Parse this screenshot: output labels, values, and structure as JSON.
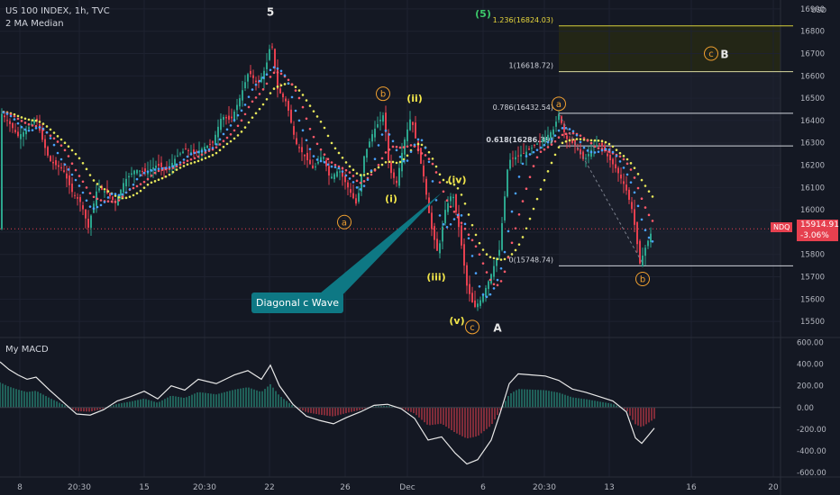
{
  "legend": {
    "symbol": "US 100 INDEX, 1h, TVC",
    "indicator": "2 MA Median"
  },
  "macd_title": "My MACD",
  "currency": "USD",
  "price_badge": {
    "symbol": "NDQ",
    "price": "15914.91",
    "change": "-3.06%"
  },
  "callout": "Diagonal c Wave",
  "colors": {
    "background": "#141823",
    "up": "#2ca58d",
    "down": "#e6404f",
    "fib": "#e7d63c",
    "label": "#f0a030"
  },
  "chart_data": [
    {
      "type": "line",
      "title": "",
      "x_ticks": [
        "8",
        "20:30",
        "15",
        "20:30",
        "22",
        "26",
        "Dec",
        "6",
        "20:30",
        "13",
        "16",
        "20"
      ],
      "y_ticks": [
        15500,
        15600,
        15700,
        15800,
        15900,
        16000,
        16100,
        16200,
        16300,
        16400,
        16500,
        16600,
        16700,
        16800,
        16900
      ],
      "ylim": [
        15440,
        16940
      ],
      "current_price": 15914.91,
      "price_path": [
        {
          "x": 0,
          "y": 16440
        },
        {
          "x": 10,
          "y": 16390
        },
        {
          "x": 20,
          "y": 16330
        },
        {
          "x": 30,
          "y": 16360
        },
        {
          "x": 40,
          "y": 16410
        },
        {
          "x": 48,
          "y": 16300
        },
        {
          "x": 55,
          "y": 16220
        },
        {
          "x": 62,
          "y": 16200
        },
        {
          "x": 70,
          "y": 16180
        },
        {
          "x": 80,
          "y": 16080
        },
        {
          "x": 90,
          "y": 16030
        },
        {
          "x": 98,
          "y": 15920
        },
        {
          "x": 108,
          "y": 16100
        },
        {
          "x": 118,
          "y": 16080
        },
        {
          "x": 128,
          "y": 16030
        },
        {
          "x": 138,
          "y": 16130
        },
        {
          "x": 150,
          "y": 16180
        },
        {
          "x": 162,
          "y": 16170
        },
        {
          "x": 174,
          "y": 16200
        },
        {
          "x": 186,
          "y": 16180
        },
        {
          "x": 196,
          "y": 16240
        },
        {
          "x": 206,
          "y": 16270
        },
        {
          "x": 216,
          "y": 16250
        },
        {
          "x": 226,
          "y": 16280
        },
        {
          "x": 236,
          "y": 16300
        },
        {
          "x": 246,
          "y": 16420
        },
        {
          "x": 256,
          "y": 16400
        },
        {
          "x": 266,
          "y": 16500
        },
        {
          "x": 276,
          "y": 16620
        },
        {
          "x": 286,
          "y": 16560
        },
        {
          "x": 295,
          "y": 16640
        },
        {
          "x": 301,
          "y": 16760
        },
        {
          "x": 308,
          "y": 16540
        },
        {
          "x": 318,
          "y": 16480
        },
        {
          "x": 328,
          "y": 16300
        },
        {
          "x": 338,
          "y": 16240
        },
        {
          "x": 348,
          "y": 16180
        },
        {
          "x": 358,
          "y": 16250
        },
        {
          "x": 366,
          "y": 16140
        },
        {
          "x": 376,
          "y": 16180
        },
        {
          "x": 386,
          "y": 16100
        },
        {
          "x": 396,
          "y": 16020
        },
        {
          "x": 404,
          "y": 16240
        },
        {
          "x": 414,
          "y": 16350
        },
        {
          "x": 426,
          "y": 16430
        },
        {
          "x": 432,
          "y": 16180
        },
        {
          "x": 440,
          "y": 16120
        },
        {
          "x": 448,
          "y": 16300
        },
        {
          "x": 456,
          "y": 16420
        },
        {
          "x": 462,
          "y": 16300
        },
        {
          "x": 470,
          "y": 16150
        },
        {
          "x": 478,
          "y": 15930
        },
        {
          "x": 486,
          "y": 15800
        },
        {
          "x": 494,
          "y": 16000
        },
        {
          "x": 502,
          "y": 16080
        },
        {
          "x": 510,
          "y": 15900
        },
        {
          "x": 518,
          "y": 15660
        },
        {
          "x": 526,
          "y": 15560
        },
        {
          "x": 534,
          "y": 15600
        },
        {
          "x": 544,
          "y": 15700
        },
        {
          "x": 554,
          "y": 15820
        },
        {
          "x": 564,
          "y": 16220
        },
        {
          "x": 574,
          "y": 16240
        },
        {
          "x": 584,
          "y": 16260
        },
        {
          "x": 594,
          "y": 16290
        },
        {
          "x": 604,
          "y": 16320
        },
        {
          "x": 614,
          "y": 16360
        },
        {
          "x": 620,
          "y": 16430
        },
        {
          "x": 628,
          "y": 16320
        },
        {
          "x": 638,
          "y": 16290
        },
        {
          "x": 648,
          "y": 16220
        },
        {
          "x": 658,
          "y": 16280
        },
        {
          "x": 666,
          "y": 16300
        },
        {
          "x": 674,
          "y": 16240
        },
        {
          "x": 684,
          "y": 16180
        },
        {
          "x": 694,
          "y": 16100
        },
        {
          "x": 702,
          "y": 15990
        },
        {
          "x": 710,
          "y": 15760
        },
        {
          "x": 716,
          "y": 15830
        },
        {
          "x": 724,
          "y": 15914
        }
      ],
      "fib_levels": [
        {
          "label": "1.236(16824.03)",
          "value": 16824.03
        },
        {
          "label": "1(16618.72)",
          "value": 16618.72
        },
        {
          "label": "0.786(16432.54)",
          "value": 16432.54
        },
        {
          "label": "0.618(16286.39)",
          "value": 16286.39
        },
        {
          "label": "0(15748.74)",
          "value": 15748.74
        }
      ],
      "wave_labels": [
        {
          "text": "5",
          "style": "plain",
          "x": 300,
          "y": 16890
        },
        {
          "text": "(5)",
          "style": "green",
          "x": 536,
          "y": 16880
        },
        {
          "text": "b",
          "style": "circle",
          "x": 425,
          "y": 16520
        },
        {
          "text": "(ii)",
          "style": "yellow",
          "x": 460,
          "y": 16500
        },
        {
          "text": "a",
          "style": "circle",
          "x": 620,
          "y": 16475
        },
        {
          "text": "c",
          "style": "circle",
          "x": 789,
          "y": 16700
        },
        {
          "text": "B",
          "style": "plain",
          "x": 804,
          "y": 16700
        },
        {
          "text": "(i)",
          "style": "yellow",
          "x": 434,
          "y": 16050
        },
        {
          "text": "a",
          "style": "circle",
          "x": 382,
          "y": 15945
        },
        {
          "text": "(iv)",
          "style": "yellow",
          "x": 507,
          "y": 16135
        },
        {
          "text": "(iii)",
          "style": "yellow",
          "x": 484,
          "y": 15700
        },
        {
          "text": "(v)",
          "style": "yellow",
          "x": 507,
          "y": 15505
        },
        {
          "text": "c",
          "style": "circle",
          "x": 524,
          "y": 15475
        },
        {
          "text": "A",
          "style": "plain",
          "x": 552,
          "y": 15475
        },
        {
          "text": "b",
          "style": "circle",
          "x": 713,
          "y": 15690
        }
      ]
    },
    {
      "type": "bar",
      "title": "My MACD",
      "y_ticks": [
        -600,
        -400,
        -200,
        0,
        200,
        400,
        600
      ],
      "ylim": [
        -640,
        620
      ],
      "macd_line": [
        {
          "x": 0,
          "y": 420
        },
        {
          "x": 10,
          "y": 350
        },
        {
          "x": 20,
          "y": 300
        },
        {
          "x": 30,
          "y": 260
        },
        {
          "x": 40,
          "y": 280
        },
        {
          "x": 55,
          "y": 160
        },
        {
          "x": 70,
          "y": 50
        },
        {
          "x": 85,
          "y": -60
        },
        {
          "x": 100,
          "y": -70
        },
        {
          "x": 115,
          "y": -20
        },
        {
          "x": 130,
          "y": 60
        },
        {
          "x": 145,
          "y": 100
        },
        {
          "x": 160,
          "y": 150
        },
        {
          "x": 175,
          "y": 80
        },
        {
          "x": 190,
          "y": 200
        },
        {
          "x": 205,
          "y": 160
        },
        {
          "x": 220,
          "y": 260
        },
        {
          "x": 240,
          "y": 220
        },
        {
          "x": 260,
          "y": 300
        },
        {
          "x": 275,
          "y": 340
        },
        {
          "x": 290,
          "y": 260
        },
        {
          "x": 300,
          "y": 390
        },
        {
          "x": 310,
          "y": 200
        },
        {
          "x": 325,
          "y": 30
        },
        {
          "x": 340,
          "y": -80
        },
        {
          "x": 355,
          "y": -120
        },
        {
          "x": 370,
          "y": -150
        },
        {
          "x": 385,
          "y": -90
        },
        {
          "x": 400,
          "y": -40
        },
        {
          "x": 415,
          "y": 20
        },
        {
          "x": 430,
          "y": 30
        },
        {
          "x": 445,
          "y": -10
        },
        {
          "x": 460,
          "y": -100
        },
        {
          "x": 475,
          "y": -300
        },
        {
          "x": 490,
          "y": -270
        },
        {
          "x": 505,
          "y": -420
        },
        {
          "x": 518,
          "y": -520
        },
        {
          "x": 530,
          "y": -480
        },
        {
          "x": 545,
          "y": -300
        },
        {
          "x": 555,
          "y": -50
        },
        {
          "x": 565,
          "y": 220
        },
        {
          "x": 575,
          "y": 310
        },
        {
          "x": 590,
          "y": 300
        },
        {
          "x": 605,
          "y": 290
        },
        {
          "x": 620,
          "y": 250
        },
        {
          "x": 635,
          "y": 170
        },
        {
          "x": 650,
          "y": 140
        },
        {
          "x": 665,
          "y": 100
        },
        {
          "x": 680,
          "y": 60
        },
        {
          "x": 695,
          "y": -40
        },
        {
          "x": 705,
          "y": -280
        },
        {
          "x": 712,
          "y": -330
        },
        {
          "x": 720,
          "y": -250
        },
        {
          "x": 726,
          "y": -190
        }
      ],
      "histogram_hint": "green above zero during advances, red below zero during declines"
    }
  ]
}
